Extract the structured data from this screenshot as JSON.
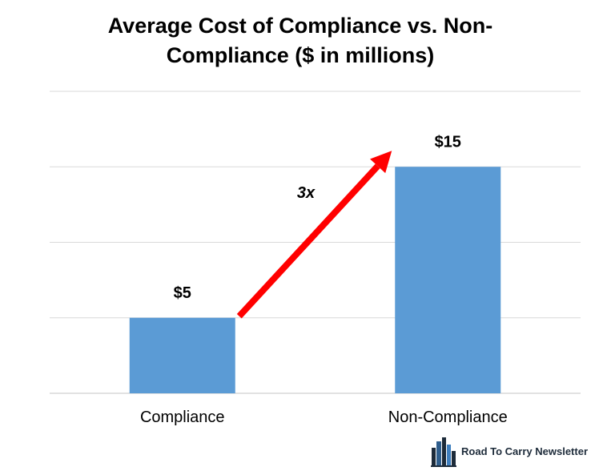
{
  "chart_data": {
    "type": "bar",
    "title": "Average Cost of Compliance vs. Non-Compliance ($ in millions)",
    "categories": [
      "Compliance",
      "Non-Compliance"
    ],
    "values": [
      5,
      15
    ],
    "data_labels": [
      "$5",
      "$15"
    ],
    "ylim": [
      0,
      20
    ],
    "grid": true,
    "legend": "none",
    "bar_color": "#5b9bd5",
    "annotations": [
      {
        "text": "3x",
        "type": "arrow",
        "from_category": "Compliance",
        "to_category": "Non-Compliance",
        "color": "#ff0000"
      }
    ]
  },
  "brand": {
    "name": "Road To Carry Newsletter",
    "icon": "city-skyline-icon"
  }
}
